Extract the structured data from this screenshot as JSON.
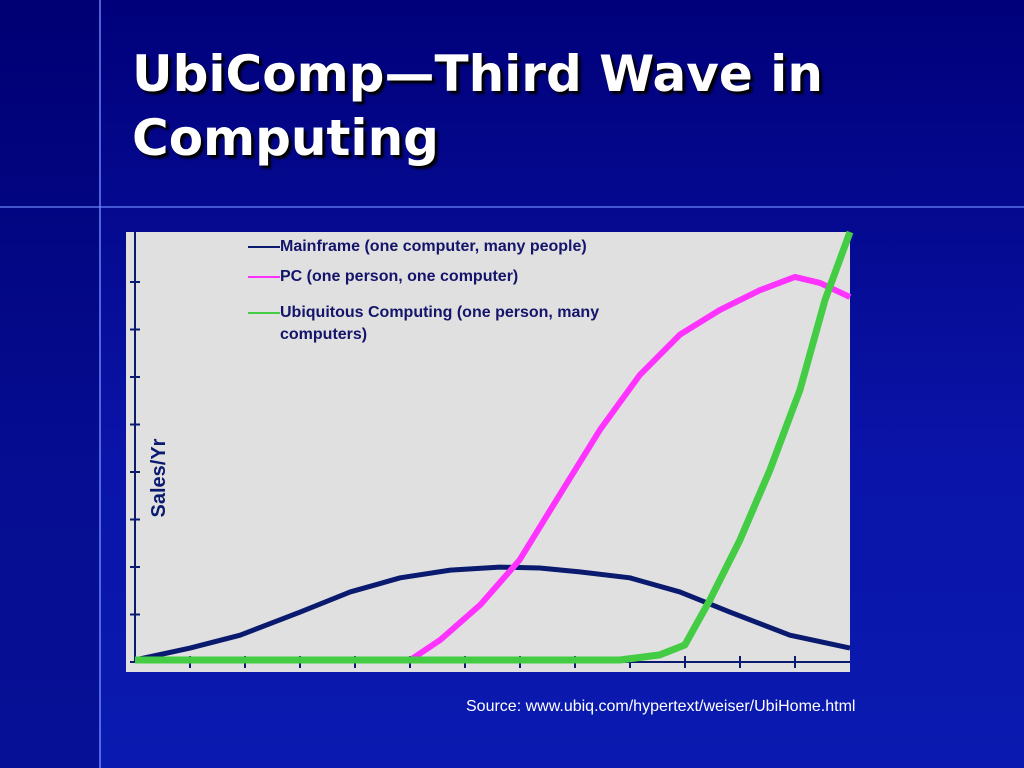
{
  "slide": {
    "title": "UbiComp—Third Wave in Computing",
    "source": "Source: www.ubiq.com/hypertext/weiser/UbiHome.html"
  },
  "chart_data": {
    "type": "line",
    "y_label": "Sales/Yr",
    "xlim": [
      0,
      100
    ],
    "ylim": [
      0,
      100
    ],
    "series": [
      {
        "name": "Mainframe (one computer, many people)",
        "color": "#0a1a6e",
        "x": [
          0,
          7.7,
          14.7,
          23.1,
          30.1,
          37.1,
          44.1,
          51.0,
          56.6,
          62.2,
          69.2,
          76.2,
          83.2,
          91.6,
          100
        ],
        "values": [
          0,
          2.8,
          5.8,
          11.2,
          15.9,
          19.2,
          21,
          21.7,
          21.5,
          20.6,
          19.2,
          15.9,
          11.2,
          5.8,
          2.8
        ]
      },
      {
        "name": "PC (one person, one computer)",
        "color": "#ff33ff",
        "x": [
          38.5,
          42.7,
          48.3,
          53.8,
          59.4,
          65.0,
          70.6,
          76.2,
          81.8,
          87.4,
          92.3,
          95.8,
          100
        ],
        "values": [
          0,
          4.7,
          12.9,
          23.4,
          38.6,
          53.7,
          66.6,
          76.0,
          81.8,
          86.4,
          89.5,
          88.1,
          84.8
        ]
      },
      {
        "name": "Ubiquitous Computing (one person, many computers)",
        "color": "#44cc44",
        "x": [
          0,
          67.8,
          73.4,
          76.9,
          80.4,
          84.6,
          88.8,
          93.0,
          96.5,
          100
        ],
        "values": [
          0,
          0,
          1.2,
          3.5,
          14.0,
          28.0,
          44.4,
          63.1,
          84.1,
          100
        ]
      }
    ]
  }
}
